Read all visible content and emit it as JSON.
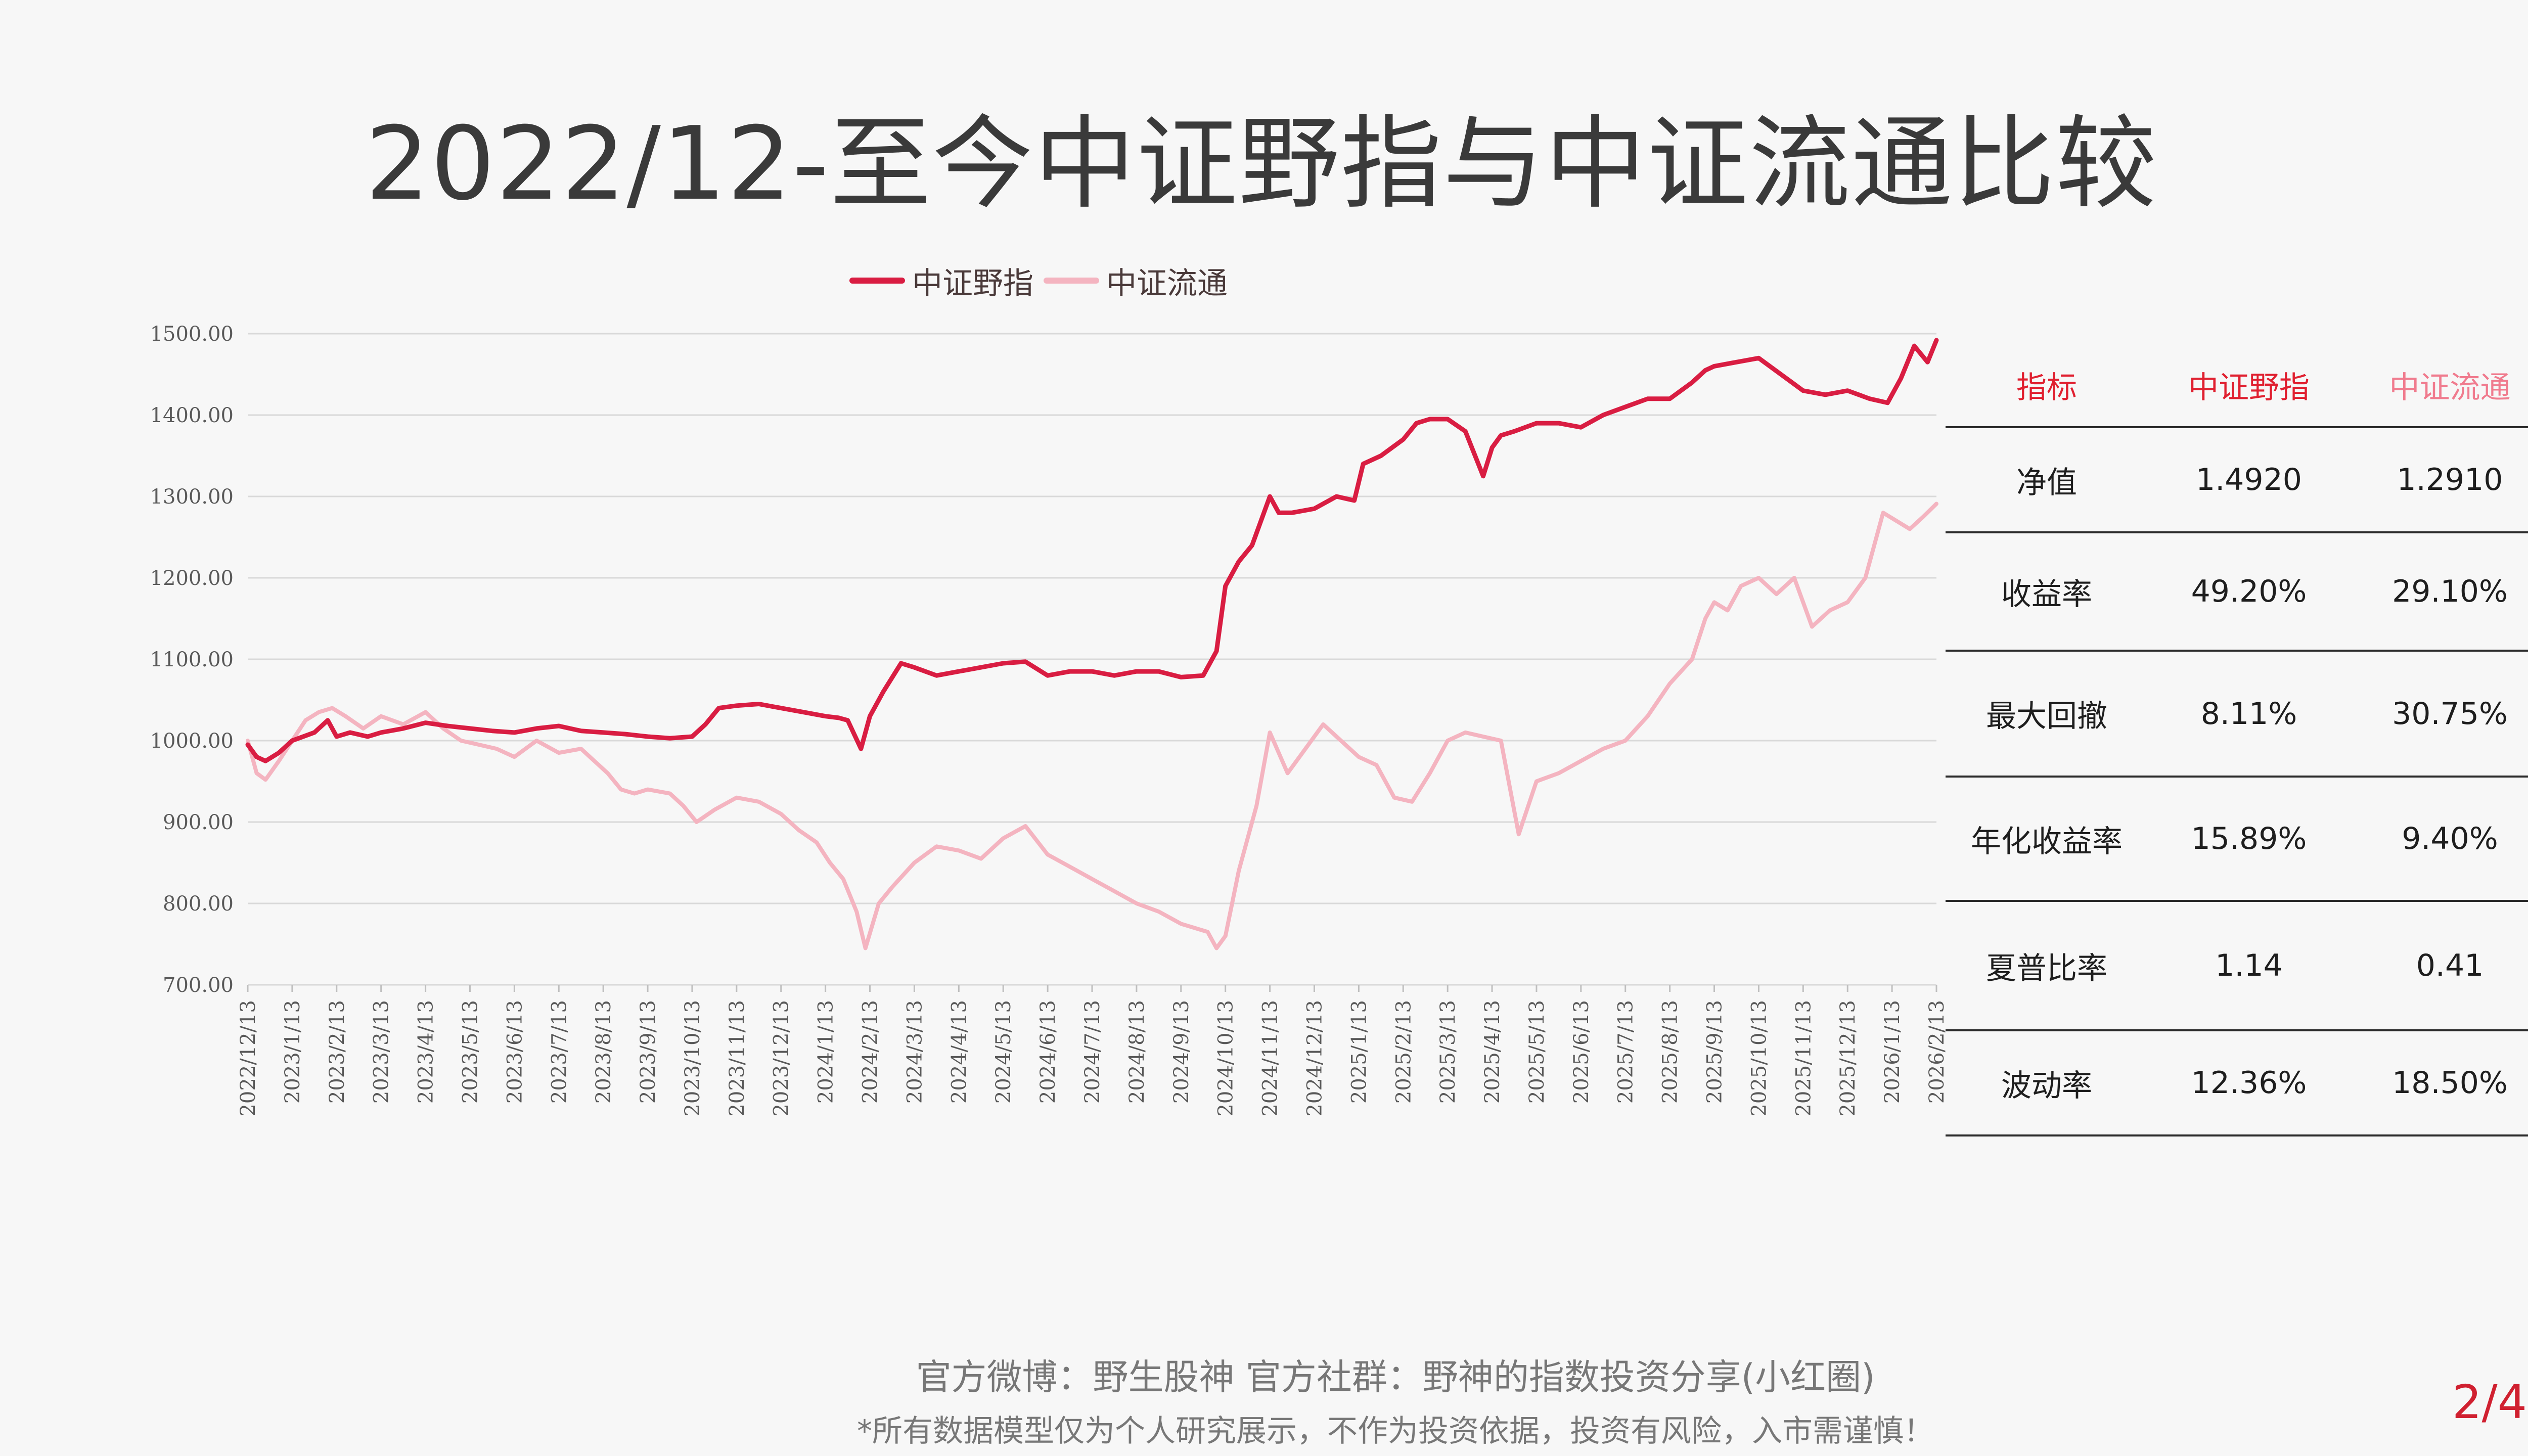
{
  "title": "2022/12-至今中证野指与中证流通比较",
  "legend": [
    {
      "label": "中证野指",
      "color": "#d91d42"
    },
    {
      "label": "中证流通",
      "color": "#f4b4c0"
    }
  ],
  "chart_data": {
    "type": "line",
    "title": "",
    "xlabel": "",
    "ylabel": "",
    "ylim": [
      700,
      1500
    ],
    "yticks": [
      "1500.00",
      "1400.00",
      "1300.00",
      "1200.00",
      "1100.00",
      "1000.00",
      "900.00",
      "800.00",
      "700.00"
    ],
    "ytick_values": [
      1500,
      1400,
      1300,
      1200,
      1100,
      1000,
      900,
      800,
      700
    ],
    "categories": [
      "2022/12/13",
      "2023/1/13",
      "2023/2/13",
      "2023/3/13",
      "2023/4/13",
      "2023/5/13",
      "2023/6/13",
      "2023/7/13",
      "2023/8/13",
      "2023/9/13",
      "2023/10/13",
      "2023/11/13",
      "2023/12/13",
      "2024/1/13",
      "2024/2/13",
      "2024/3/13",
      "2024/4/13",
      "2024/5/13",
      "2024/6/13",
      "2024/7/13",
      "2024/8/13",
      "2024/9/13",
      "2024/10/13",
      "2024/11/13",
      "2024/12/13",
      "2025/1/13",
      "2025/2/13",
      "2025/3/13",
      "2025/4/13",
      "2025/5/13",
      "2025/6/13",
      "2025/7/13",
      "2025/8/13",
      "2025/9/13",
      "2025/10/13",
      "2025/11/13",
      "2025/12/13",
      "2026/1/13",
      "2026/2/13"
    ],
    "grid": true,
    "legend_position": "top",
    "series": [
      {
        "name": "中证野指",
        "color": "#d91d42",
        "x": [
          0,
          0.2,
          0.4,
          0.7,
          1.0,
          1.5,
          1.8,
          2.0,
          2.3,
          2.7,
          3.0,
          3.5,
          4.0,
          4.5,
          5.0,
          5.5,
          6.0,
          6.5,
          7.0,
          7.5,
          8.0,
          8.5,
          9.0,
          9.5,
          10.0,
          10.3,
          10.6,
          11.0,
          11.5,
          12.0,
          12.5,
          13.0,
          13.3,
          13.5,
          13.8,
          14.0,
          14.3,
          14.7,
          15.0,
          15.5,
          16.0,
          16.5,
          17.0,
          17.5,
          18.0,
          18.5,
          19.0,
          19.5,
          20.0,
          20.5,
          21.0,
          21.5,
          21.8,
          22.0,
          22.3,
          22.6,
          23.0,
          23.2,
          23.5,
          24.0,
          24.5,
          24.9,
          25.1,
          25.5,
          26.0,
          26.3,
          26.6,
          27.0,
          27.4,
          27.8,
          28.0,
          28.2,
          28.5,
          29.0,
          29.5,
          30.0,
          30.5,
          31.0,
          31.5,
          32.0,
          32.5,
          32.8,
          33.0,
          33.5,
          34.0,
          34.5,
          35.0,
          35.5,
          36.0,
          36.5,
          36.9,
          37.2,
          37.5,
          37.8,
          38.0
        ],
        "values": [
          995,
          980,
          975,
          985,
          1000,
          1010,
          1025,
          1005,
          1010,
          1005,
          1010,
          1015,
          1022,
          1018,
          1015,
          1012,
          1010,
          1015,
          1018,
          1012,
          1010,
          1008,
          1005,
          1003,
          1005,
          1020,
          1040,
          1043,
          1045,
          1040,
          1035,
          1030,
          1028,
          1025,
          990,
          1030,
          1060,
          1095,
          1090,
          1080,
          1085,
          1090,
          1095,
          1097,
          1080,
          1085,
          1085,
          1080,
          1085,
          1085,
          1078,
          1080,
          1110,
          1190,
          1220,
          1240,
          1300,
          1280,
          1280,
          1285,
          1300,
          1295,
          1340,
          1350,
          1370,
          1390,
          1395,
          1395,
          1380,
          1325,
          1360,
          1375,
          1380,
          1390,
          1390,
          1385,
          1400,
          1410,
          1420,
          1420,
          1440,
          1455,
          1460,
          1465,
          1470,
          1450,
          1430,
          1425,
          1430,
          1420,
          1415,
          1445,
          1485,
          1465,
          1492
        ]
      },
      {
        "name": "中证流通",
        "color": "#f4b4c0",
        "x": [
          0,
          0.2,
          0.4,
          0.7,
          1.0,
          1.3,
          1.6,
          1.9,
          2.2,
          2.6,
          3.0,
          3.5,
          4.0,
          4.4,
          4.8,
          5.2,
          5.6,
          6.0,
          6.5,
          7.0,
          7.5,
          7.8,
          8.1,
          8.4,
          8.7,
          9.0,
          9.5,
          9.8,
          10.1,
          10.5,
          11.0,
          11.5,
          12.0,
          12.4,
          12.8,
          13.1,
          13.4,
          13.7,
          13.9,
          14.2,
          14.5,
          15.0,
          15.5,
          16.0,
          16.5,
          17.0,
          17.5,
          18.0,
          18.5,
          19.0,
          19.5,
          20.0,
          20.5,
          21.0,
          21.3,
          21.6,
          21.8,
          22.0,
          22.3,
          22.7,
          23.0,
          23.4,
          23.8,
          24.2,
          24.6,
          25.0,
          25.4,
          25.8,
          26.2,
          26.6,
          27.0,
          27.4,
          27.8,
          28.2,
          28.6,
          29.0,
          29.5,
          30.0,
          30.5,
          31.0,
          31.5,
          32.0,
          32.5,
          32.8,
          33.0,
          33.3,
          33.6,
          34.0,
          34.4,
          34.8,
          35.2,
          35.6,
          36.0,
          36.4,
          36.8,
          37.1,
          37.4,
          37.7,
          38.0
        ],
        "values": [
          1000,
          960,
          952,
          975,
          1000,
          1025,
          1035,
          1040,
          1030,
          1015,
          1030,
          1020,
          1035,
          1015,
          1000,
          995,
          990,
          980,
          1000,
          985,
          990,
          975,
          960,
          940,
          935,
          940,
          935,
          920,
          900,
          915,
          930,
          925,
          910,
          890,
          875,
          850,
          830,
          790,
          745,
          800,
          820,
          850,
          870,
          865,
          855,
          880,
          895,
          860,
          845,
          830,
          815,
          800,
          790,
          775,
          770,
          765,
          745,
          760,
          840,
          920,
          1010,
          960,
          990,
          1020,
          1000,
          980,
          970,
          930,
          925,
          960,
          1000,
          1010,
          1005,
          1000,
          885,
          950,
          960,
          975,
          990,
          1000,
          1030,
          1070,
          1100,
          1150,
          1170,
          1160,
          1190,
          1200,
          1180,
          1200,
          1140,
          1160,
          1170,
          1200,
          1280,
          1270,
          1260,
          1275,
          1291
        ]
      }
    ]
  },
  "stats": {
    "headers": [
      "指标",
      "中证野指",
      "中证流通"
    ],
    "rows": [
      [
        "净值",
        "1.4920",
        "1.2910"
      ],
      [
        "收益率",
        "49.20%",
        "29.10%"
      ],
      [
        "最大回撤",
        "8.11%",
        "30.75%"
      ],
      [
        "年化收益率",
        "15.89%",
        "9.40%"
      ],
      [
        "夏普比率",
        "1.14",
        "0.41"
      ],
      [
        "波动率",
        "12.36%",
        "18.50%"
      ]
    ]
  },
  "footer": {
    "line1": "官方微博：野生股神  官方社群：野神的指数投资分享(小红圈)",
    "line2": "*所有数据模型仅为个人研究展示，不作为投资依据，投资有风险，入市需谨慎！"
  },
  "page_number": "2/4"
}
